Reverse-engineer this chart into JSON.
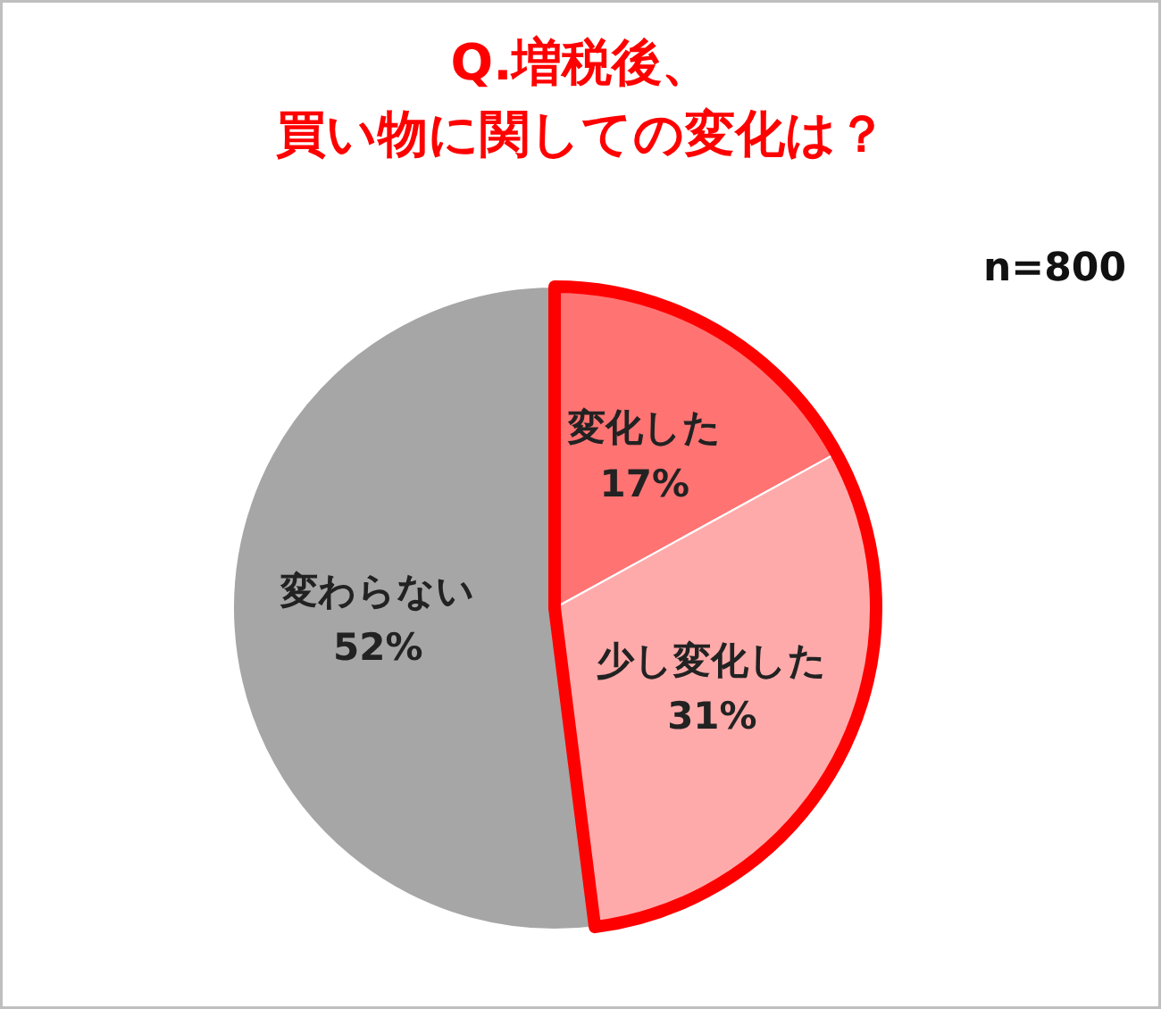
{
  "chart_data": {
    "type": "pie",
    "title": "Q.増税後、買い物に関しての変化は？",
    "categories": [
      "変化した",
      "少し変化した",
      "変わらない"
    ],
    "values": [
      17,
      31,
      52
    ],
    "colors": [
      "#ff7373",
      "#ffaaaa",
      "#a6a6a6"
    ],
    "value_labels": [
      "17%",
      "31%",
      "52%"
    ],
    "annotations": [
      "n=800"
    ]
  }
}
